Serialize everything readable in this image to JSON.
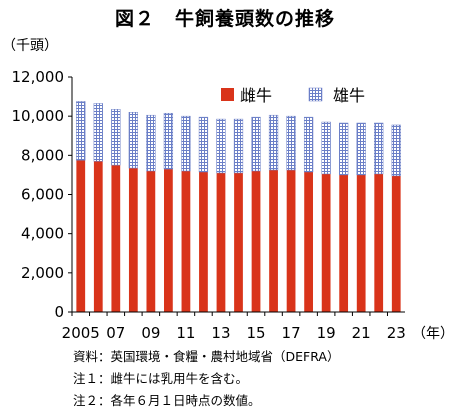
{
  "chart_data": {
    "type": "bar",
    "stacked": true,
    "title": "図２　牛飼養頭数の推移",
    "y_unit": "（千頭）",
    "x_unit": "（年）",
    "categories": [
      "2005",
      "2006",
      "2007",
      "2008",
      "2009",
      "2010",
      "2011",
      "2012",
      "2013",
      "2014",
      "2015",
      "2016",
      "2017",
      "2018",
      "2019",
      "2020",
      "2021",
      "2022",
      "2023"
    ],
    "x_tick_labels": [
      "2005",
      "",
      "07",
      "",
      "09",
      "",
      "11",
      "",
      "13",
      "",
      "15",
      "",
      "17",
      "",
      "19",
      "",
      "21",
      "",
      "23"
    ],
    "ylim": [
      0,
      12000
    ],
    "y_ticks": [
      "0",
      "2,000",
      "4,000",
      "6,000",
      "8,000",
      "10,000",
      "12,000"
    ],
    "grid": false,
    "legend_position": "top-right",
    "series": [
      {
        "name": "雌牛",
        "color": "#d9341a",
        "pattern": "solid",
        "values": [
          7750,
          7700,
          7500,
          7350,
          7200,
          7300,
          7200,
          7150,
          7100,
          7100,
          7200,
          7250,
          7250,
          7150,
          7050,
          7000,
          7000,
          7050,
          6950
        ]
      },
      {
        "name": "雄牛",
        "color": "#6b7fc7",
        "pattern": "grid",
        "values": [
          3000,
          2950,
          2850,
          2850,
          2850,
          2850,
          2800,
          2800,
          2750,
          2750,
          2750,
          2800,
          2750,
          2800,
          2650,
          2650,
          2650,
          2600,
          2600
        ]
      }
    ]
  },
  "notes": {
    "source": "資料：英国環境・食糧・農村地域省（DEFRA）",
    "note1": "注１：雌牛には乳用牛を含む。",
    "note2": "注２：各年６月１日時点の数値。"
  }
}
